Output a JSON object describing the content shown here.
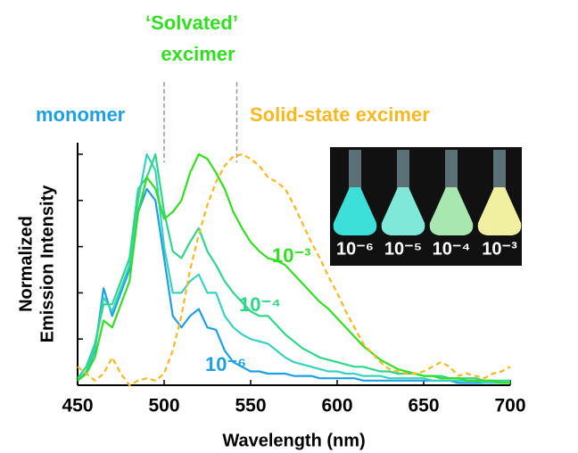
{
  "chart_data": {
    "type": "line",
    "xlabel": "Wavelength (nm)",
    "ylabel": [
      "Normalized",
      "Emission Intensity"
    ],
    "annotations": [
      {
        "text": "‘Solvated’",
        "color": "#33dd22"
      },
      {
        "text": "excimer",
        "color": "#33dd22"
      },
      {
        "text": "monomer",
        "color": "#1ea0e0"
      },
      {
        "text": "Solid-state excimer",
        "color": "#f5b820"
      }
    ],
    "reference_lines": [
      500,
      542
    ],
    "x": [
      450,
      455,
      460,
      465,
      470,
      475,
      480,
      485,
      490,
      495,
      500,
      505,
      510,
      515,
      520,
      525,
      530,
      535,
      540,
      545,
      550,
      555,
      560,
      565,
      570,
      575,
      580,
      585,
      590,
      595,
      600,
      605,
      610,
      615,
      620,
      625,
      630,
      635,
      640,
      645,
      650,
      655,
      660,
      665,
      670,
      675,
      680,
      685,
      690,
      695,
      700
    ],
    "series": [
      {
        "name": "10⁻⁶",
        "color": "#1ea0e0",
        "dashed": false,
        "values": [
          0.02,
          0.05,
          0.15,
          0.42,
          0.3,
          0.4,
          0.5,
          0.75,
          0.85,
          0.8,
          0.55,
          0.3,
          0.25,
          0.3,
          0.33,
          0.25,
          0.24,
          0.15,
          0.1,
          0.08,
          0.06,
          0.06,
          0.05,
          0.05,
          0.05,
          0.04,
          0.04,
          0.04,
          0.03,
          0.03,
          0.03,
          0.03,
          0.03,
          0.02,
          0.02,
          0.02,
          0.02,
          0.02,
          0.02,
          0.02,
          0.02,
          0.02,
          0.02,
          0.02,
          0.01,
          0.01,
          0.01,
          0.01,
          0.01,
          0.01,
          0.01
        ]
      },
      {
        "color": "#3ad0c0",
        "dashed": false,
        "values": [
          0.02,
          0.06,
          0.16,
          0.38,
          0.32,
          0.42,
          0.52,
          0.8,
          1.0,
          0.93,
          0.6,
          0.4,
          0.4,
          0.45,
          0.48,
          0.4,
          0.4,
          0.3,
          0.25,
          0.22,
          0.2,
          0.19,
          0.18,
          0.15,
          0.12,
          0.1,
          0.09,
          0.08,
          0.07,
          0.06,
          0.06,
          0.05,
          0.05,
          0.04,
          0.04,
          0.04,
          0.03,
          0.03,
          0.03,
          0.03,
          0.03,
          0.02,
          0.02,
          0.02,
          0.02,
          0.02,
          0.02,
          0.01,
          0.01,
          0.01,
          0.01
        ]
      },
      {
        "name": "10⁻⁴",
        "color": "#2ed68a",
        "dashed": false,
        "values": [
          0.03,
          0.08,
          0.18,
          0.35,
          0.35,
          0.45,
          0.55,
          0.85,
          0.9,
          1.0,
          0.75,
          0.58,
          0.55,
          0.62,
          0.68,
          0.58,
          0.52,
          0.45,
          0.4,
          0.36,
          0.32,
          0.3,
          0.3,
          0.26,
          0.22,
          0.19,
          0.16,
          0.14,
          0.12,
          0.11,
          0.1,
          0.09,
          0.08,
          0.08,
          0.07,
          0.06,
          0.06,
          0.05,
          0.05,
          0.05,
          0.04,
          0.04,
          0.04,
          0.03,
          0.03,
          0.03,
          0.03,
          0.02,
          0.02,
          0.02,
          0.02
        ]
      },
      {
        "name": "10⁻³",
        "color": "#33dd22",
        "dashed": false,
        "values": [
          0.02,
          0.05,
          0.12,
          0.28,
          0.25,
          0.35,
          0.45,
          0.75,
          0.9,
          0.85,
          0.72,
          0.75,
          0.8,
          0.92,
          1.0,
          0.98,
          0.92,
          0.85,
          0.75,
          0.68,
          0.62,
          0.58,
          0.55,
          0.54,
          0.52,
          0.48,
          0.44,
          0.4,
          0.36,
          0.33,
          0.29,
          0.25,
          0.21,
          0.17,
          0.14,
          0.11,
          0.09,
          0.07,
          0.06,
          0.05,
          0.04,
          0.04,
          0.03,
          0.03,
          0.03,
          0.02,
          0.02,
          0.02,
          0.02,
          0.01,
          0.01
        ]
      },
      {
        "color": "#f5b820",
        "dashed": true,
        "values": [
          0.08,
          0.05,
          0.02,
          0.05,
          0.12,
          0.05,
          0.0,
          0.02,
          0.03,
          0.02,
          0.05,
          0.15,
          0.3,
          0.5,
          0.65,
          0.78,
          0.88,
          0.95,
          0.99,
          1.0,
          0.98,
          0.95,
          0.9,
          0.88,
          0.85,
          0.78,
          0.7,
          0.62,
          0.55,
          0.47,
          0.4,
          0.32,
          0.25,
          0.18,
          0.14,
          0.1,
          0.07,
          0.06,
          0.05,
          0.05,
          0.06,
          0.08,
          0.1,
          0.08,
          0.04,
          0.05,
          0.04,
          0.03,
          0.05,
          0.06,
          0.08
        ]
      }
    ],
    "xlim": [
      450,
      700
    ],
    "xticks": [
      450,
      500,
      550,
      600,
      650,
      700
    ],
    "ylim": [
      0,
      1.05
    ],
    "yticks": [
      0,
      0.2,
      0.4,
      0.6,
      0.8,
      1.0
    ],
    "inset": {
      "labels": [
        "10⁻⁶",
        "10⁻⁵",
        "10⁻⁴",
        "10⁻³"
      ]
    }
  }
}
